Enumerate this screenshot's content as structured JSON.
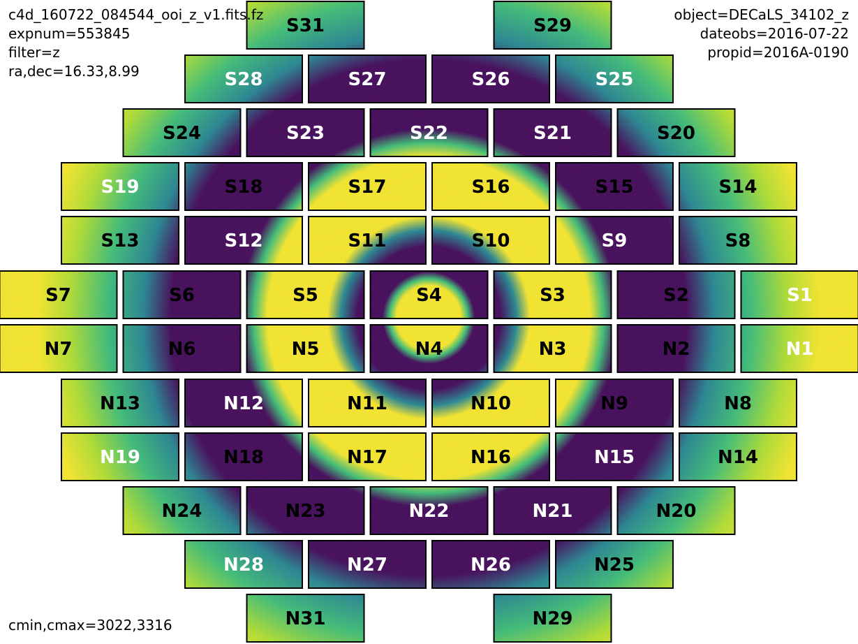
{
  "header_left": {
    "filename": "c4d_160722_084544_ooi_z_v1.fits.fz",
    "expnum": "expnum=553845",
    "filter": "filter=z",
    "radec": "ra,dec=16.33,8.99"
  },
  "header_right": {
    "object": "object=DECaLS_34102_z",
    "dateobs": "dateobs=2016-07-22",
    "propid": "propid=2016A-0190"
  },
  "footer": {
    "cmin_cmax": "cmin,cmax=3022,3316"
  },
  "colors": {
    "low": "#440154",
    "mid": "#26828e",
    "green": "#3fbc73",
    "high": "#fde725"
  },
  "ccd_rows": [
    [
      {
        "name": "S31",
        "label_color": "black"
      },
      {
        "name": "S29",
        "label_color": "black"
      }
    ],
    [
      {
        "name": "S28",
        "label_color": "white"
      },
      {
        "name": "S27",
        "label_color": "white"
      },
      {
        "name": "S26",
        "label_color": "white"
      },
      {
        "name": "S25",
        "label_color": "white"
      }
    ],
    [
      {
        "name": "S24",
        "label_color": "black"
      },
      {
        "name": "S23",
        "label_color": "white"
      },
      {
        "name": "S22",
        "label_color": "white"
      },
      {
        "name": "S21",
        "label_color": "white"
      },
      {
        "name": "S20",
        "label_color": "black"
      }
    ],
    [
      {
        "name": "S19",
        "label_color": "white"
      },
      {
        "name": "S18",
        "label_color": "black"
      },
      {
        "name": "S17",
        "label_color": "black"
      },
      {
        "name": "S16",
        "label_color": "black"
      },
      {
        "name": "S15",
        "label_color": "black"
      },
      {
        "name": "S14",
        "label_color": "black"
      }
    ],
    [
      {
        "name": "S13",
        "label_color": "black"
      },
      {
        "name": "S12",
        "label_color": "white"
      },
      {
        "name": "S11",
        "label_color": "black"
      },
      {
        "name": "S10",
        "label_color": "black"
      },
      {
        "name": "S9",
        "label_color": "white"
      },
      {
        "name": "S8",
        "label_color": "black"
      }
    ],
    [
      {
        "name": "S7",
        "label_color": "black"
      },
      {
        "name": "S6",
        "label_color": "black"
      },
      {
        "name": "S5",
        "label_color": "black"
      },
      {
        "name": "S4",
        "label_color": "black"
      },
      {
        "name": "S3",
        "label_color": "black"
      },
      {
        "name": "S2",
        "label_color": "black"
      },
      {
        "name": "S1",
        "label_color": "white"
      }
    ],
    [
      {
        "name": "N7",
        "label_color": "black"
      },
      {
        "name": "N6",
        "label_color": "black"
      },
      {
        "name": "N5",
        "label_color": "black"
      },
      {
        "name": "N4",
        "label_color": "black"
      },
      {
        "name": "N3",
        "label_color": "black"
      },
      {
        "name": "N2",
        "label_color": "black"
      },
      {
        "name": "N1",
        "label_color": "white"
      }
    ],
    [
      {
        "name": "N13",
        "label_color": "black"
      },
      {
        "name": "N12",
        "label_color": "white"
      },
      {
        "name": "N11",
        "label_color": "black"
      },
      {
        "name": "N10",
        "label_color": "black"
      },
      {
        "name": "N9",
        "label_color": "black"
      },
      {
        "name": "N8",
        "label_color": "black"
      }
    ],
    [
      {
        "name": "N19",
        "label_color": "white"
      },
      {
        "name": "N18",
        "label_color": "black"
      },
      {
        "name": "N17",
        "label_color": "black"
      },
      {
        "name": "N16",
        "label_color": "black"
      },
      {
        "name": "N15",
        "label_color": "white"
      },
      {
        "name": "N14",
        "label_color": "black"
      }
    ],
    [
      {
        "name": "N24",
        "label_color": "black"
      },
      {
        "name": "N23",
        "label_color": "black"
      },
      {
        "name": "N22",
        "label_color": "white"
      },
      {
        "name": "N21",
        "label_color": "white"
      },
      {
        "name": "N20",
        "label_color": "black"
      }
    ],
    [
      {
        "name": "N28",
        "label_color": "white"
      },
      {
        "name": "N27",
        "label_color": "white"
      },
      {
        "name": "N26",
        "label_color": "white"
      },
      {
        "name": "N25",
        "label_color": "black"
      }
    ],
    [
      {
        "name": "N31",
        "label_color": "black"
      },
      {
        "name": "N29",
        "label_color": "black"
      }
    ]
  ]
}
